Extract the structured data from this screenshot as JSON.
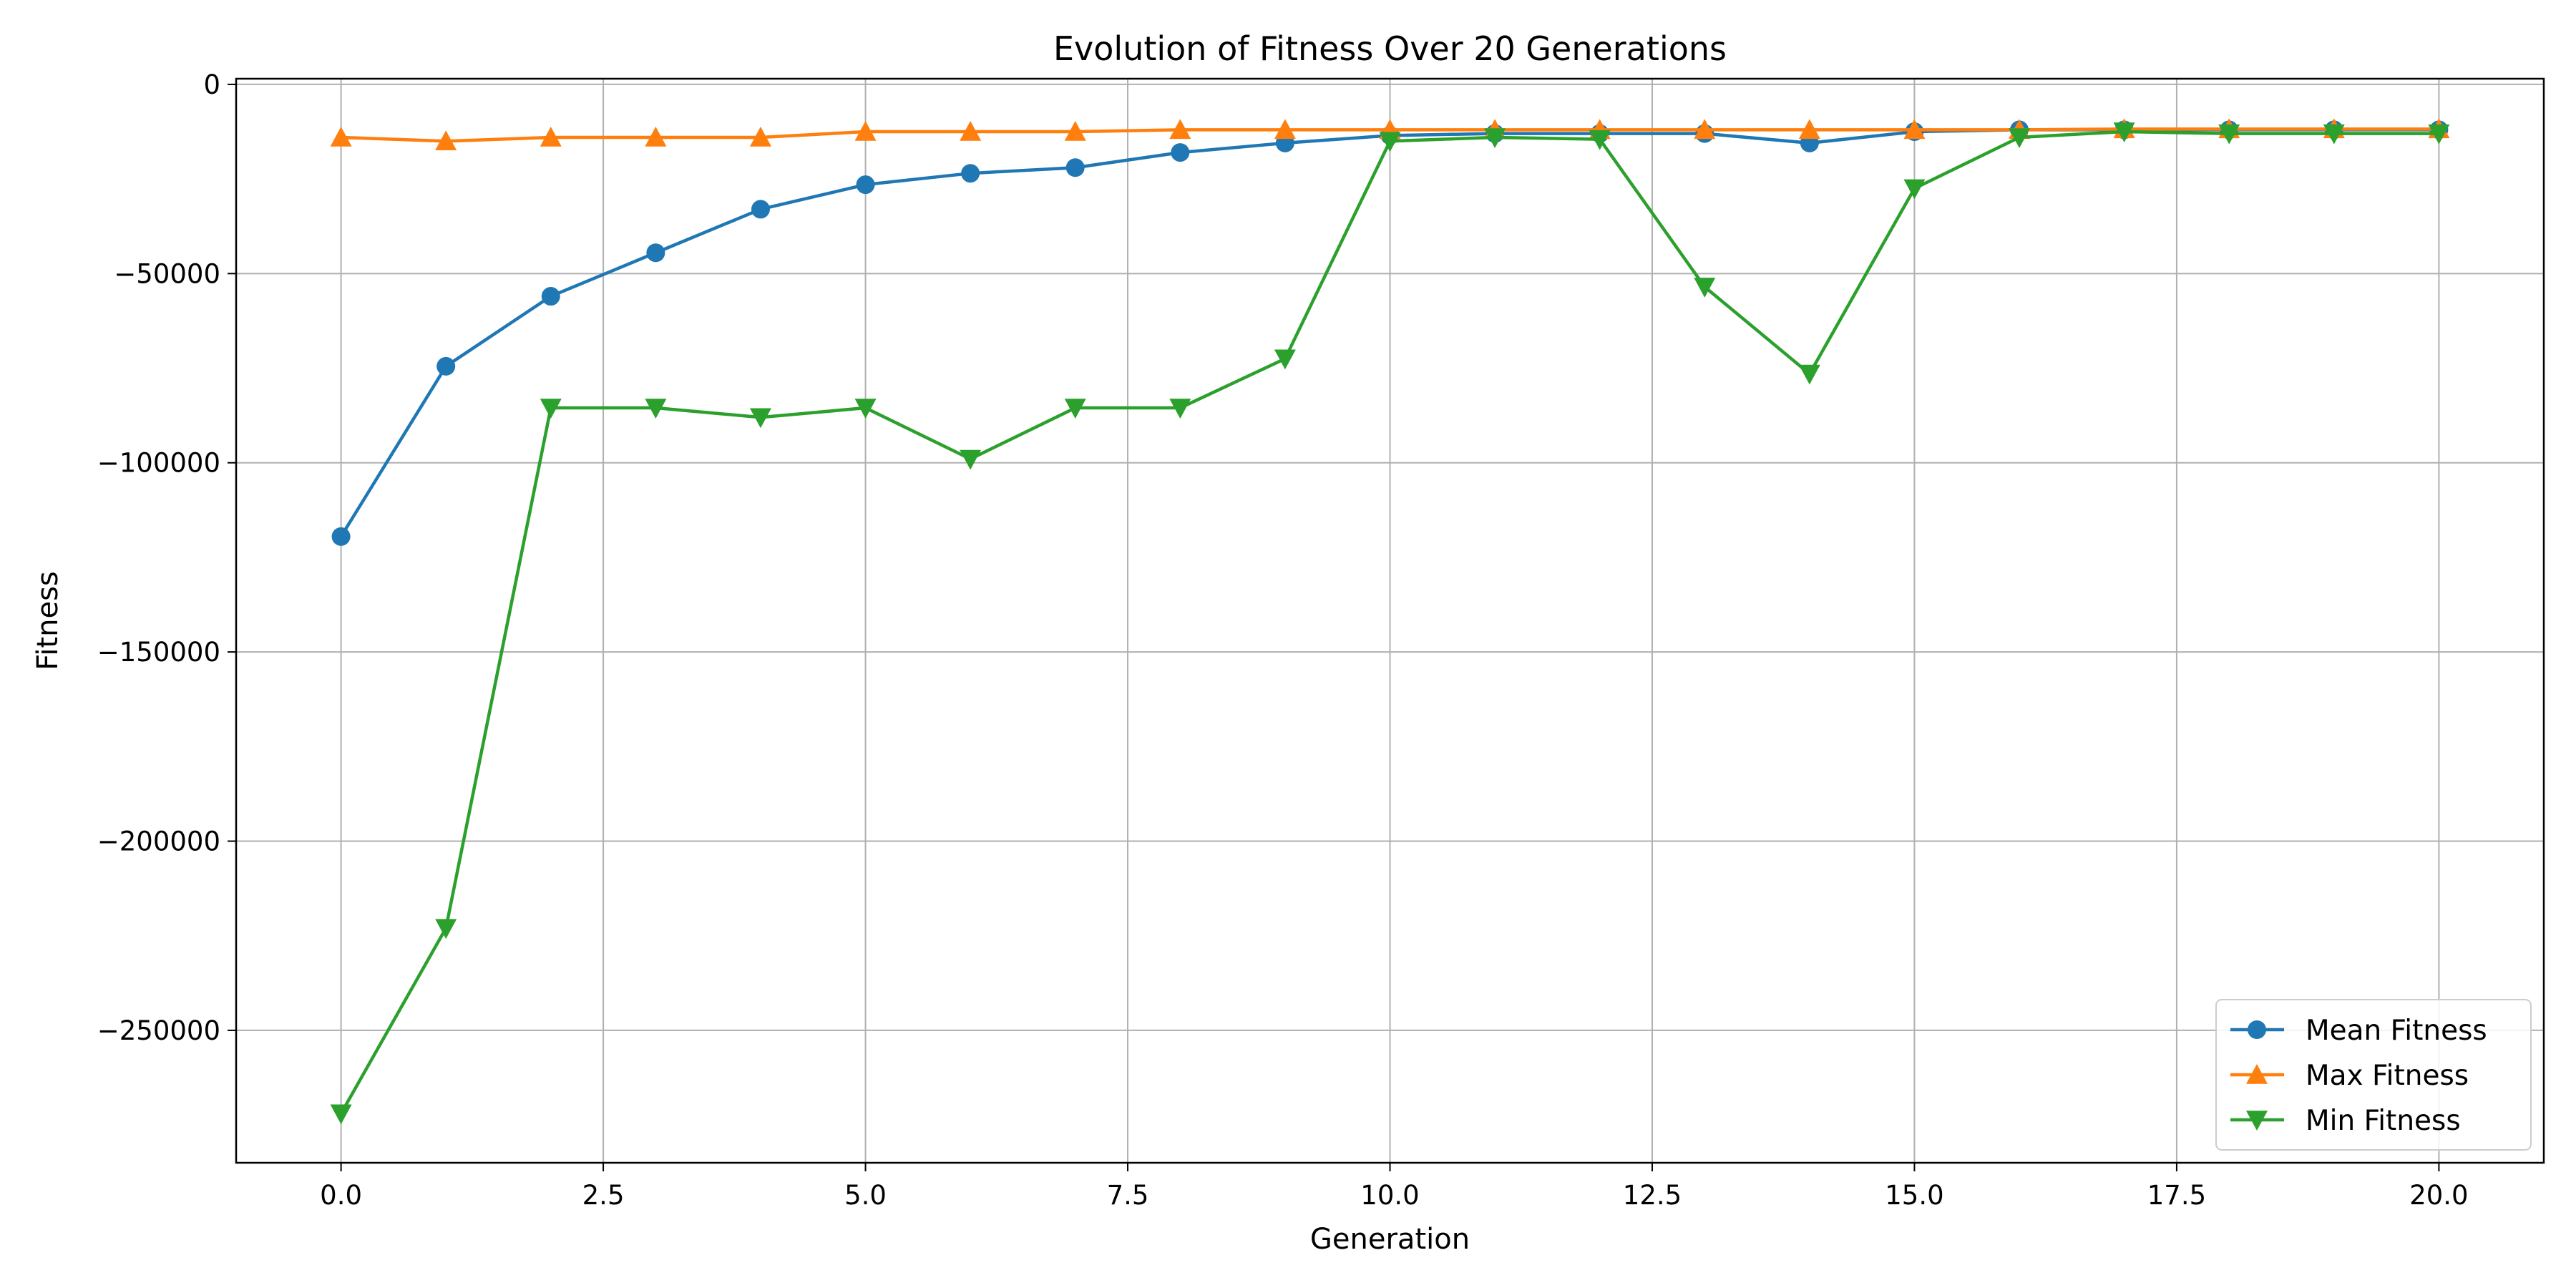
{
  "chart_data": {
    "type": "line",
    "title": "Evolution of Fitness Over 20 Generations",
    "xlabel": "Generation",
    "ylabel": "Fitness",
    "xlim": [
      -1,
      21
    ],
    "ylim": [
      -285000,
      1500
    ],
    "x_ticks": [
      0,
      2.5,
      5,
      7.5,
      10,
      12.5,
      15,
      17.5,
      20
    ],
    "x_tick_labels": [
      "0.0",
      "2.5",
      "5.0",
      "7.5",
      "10.0",
      "12.5",
      "15.0",
      "17.5",
      "20.0"
    ],
    "y_ticks": [
      0,
      -50000,
      -100000,
      -150000,
      -200000,
      -250000
    ],
    "y_tick_labels": [
      "0",
      "−50000",
      "−100000",
      "−150000",
      "−200000",
      "−250000"
    ],
    "grid": true,
    "legend_position": "bottom-right",
    "x": [
      0,
      1,
      2,
      3,
      4,
      5,
      6,
      7,
      8,
      9,
      10,
      11,
      12,
      13,
      14,
      15,
      16,
      17,
      18,
      19,
      20
    ],
    "series": [
      {
        "name": "Mean Fitness",
        "color": "#1f77b4",
        "marker": "circle",
        "values": [
          -119500,
          -74500,
          -56000,
          -44500,
          -33000,
          -26500,
          -23500,
          -22000,
          -18000,
          -15500,
          -13500,
          -13000,
          -13000,
          -13000,
          -15500,
          -12500,
          -12000,
          -12000,
          -12000,
          -12000,
          -12000
        ]
      },
      {
        "name": "Max Fitness",
        "color": "#ff7f0e",
        "marker": "triangle-up",
        "values": [
          -14000,
          -15000,
          -14000,
          -14000,
          -14000,
          -12500,
          -12500,
          -12500,
          -12000,
          -12000,
          -12000,
          -12000,
          -12000,
          -12000,
          -12000,
          -12000,
          -12000,
          -11800,
          -11800,
          -11800,
          -11800
        ]
      },
      {
        "name": "Min Fitness",
        "color": "#2ca02c",
        "marker": "triangle-down",
        "values": [
          -272000,
          -223000,
          -85500,
          -85500,
          -88000,
          -85500,
          -99000,
          -85500,
          -85500,
          -72500,
          -15000,
          -14000,
          -14500,
          -53500,
          -76500,
          -27500,
          -14000,
          -12500,
          -13000,
          -13000,
          -13000
        ]
      }
    ]
  }
}
